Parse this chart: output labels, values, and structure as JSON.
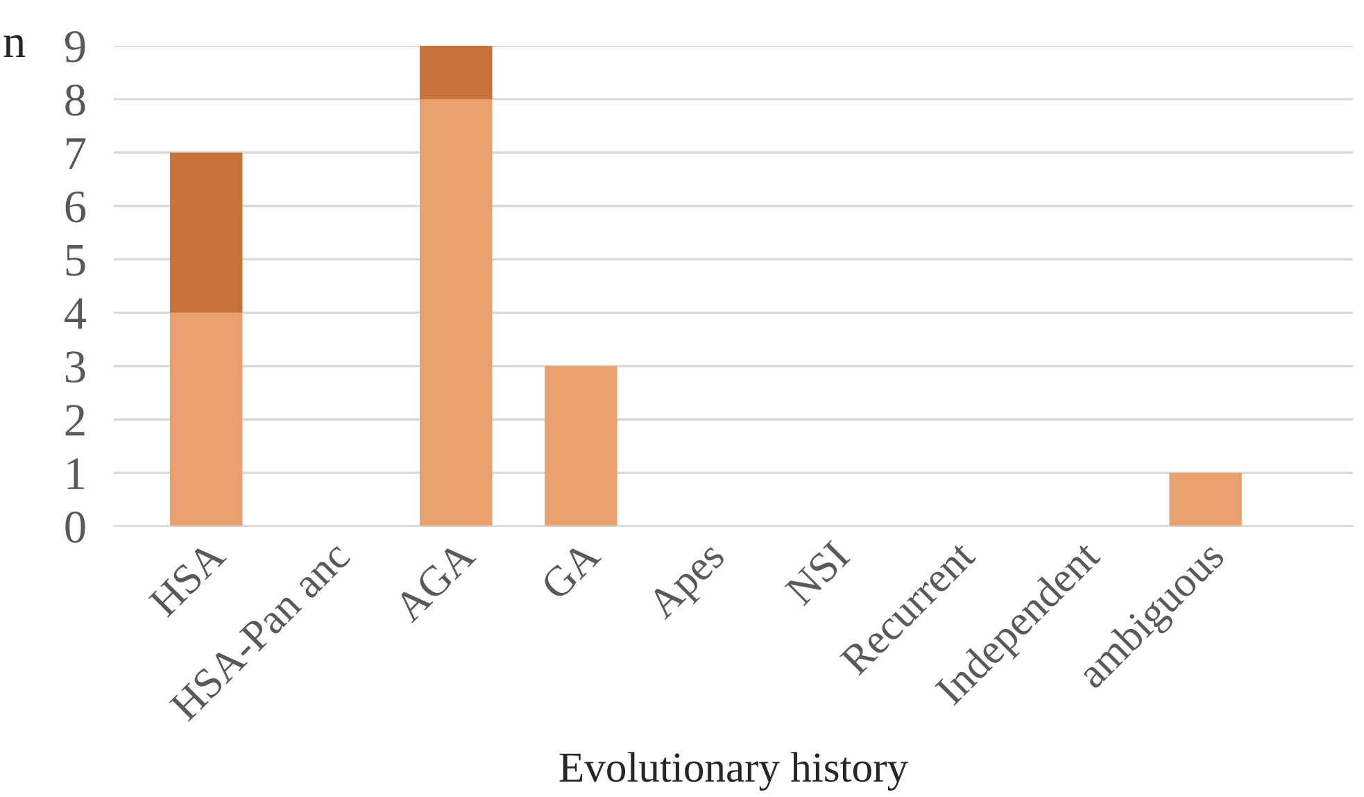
{
  "chart_data": {
    "type": "bar",
    "stacked": true,
    "xlabel": "Evolutionary history",
    "annotations": [
      "n"
    ],
    "categories": [
      "HSA",
      "HSA-Pan anc",
      "AGA",
      "GA",
      "Apes",
      "NSI",
      "Recurrent",
      "Independent",
      "ambiguous"
    ],
    "series": [
      {
        "color": "#e8a06e",
        "values": [
          4,
          0,
          8,
          3,
          0,
          0,
          0,
          0,
          1
        ]
      },
      {
        "color": "#c6723a",
        "values": [
          3,
          0,
          1,
          0,
          0,
          0,
          0,
          0,
          0
        ]
      }
    ],
    "ylim": [
      0,
      9
    ],
    "yticks": [
      0,
      1,
      2,
      3,
      4,
      5,
      6,
      7,
      8,
      9
    ],
    "grid": "y",
    "legend": false
  }
}
